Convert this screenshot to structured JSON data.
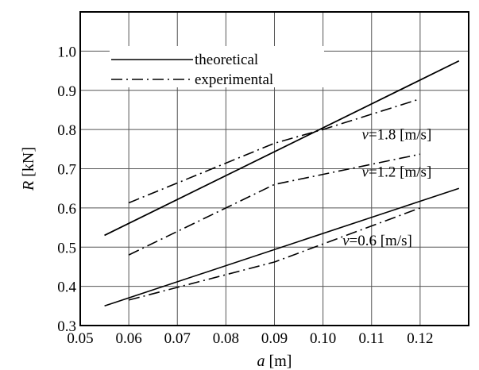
{
  "chart_data": {
    "type": "line",
    "xlabel": {
      "var": "a",
      "unit": " [m]"
    },
    "ylabel": {
      "var": "R",
      "unit": " [kN]"
    },
    "xlim": [
      0.05,
      0.13
    ],
    "ylim": [
      0.3,
      1.1
    ],
    "xticks": [
      0.05,
      0.06,
      0.07,
      0.08,
      0.09,
      0.1,
      0.11,
      0.12
    ],
    "xtick_labels": [
      "0.05",
      "0.06",
      "0.07",
      "0.08",
      "0.09",
      "0.10",
      "0.11",
      "0.12"
    ],
    "yticks": [
      0.3,
      0.4,
      0.5,
      0.6,
      0.7,
      0.8,
      0.9,
      1.0
    ],
    "ytick_labels": [
      "0.3",
      "0.4",
      "0.5",
      "0.6",
      "0.7",
      "0.8",
      "0.9",
      "1.0"
    ],
    "grid": true,
    "legend": {
      "placement": "top-left",
      "entries": [
        {
          "label": "theoretical",
          "style": "solid"
        },
        {
          "label": "experimental",
          "style": "dashdot"
        }
      ]
    },
    "series": [
      {
        "group": "1.8",
        "style": "solid",
        "x": [
          0.055,
          0.128
        ],
        "y": [
          0.53,
          0.975
        ]
      },
      {
        "group": "1.8",
        "style": "dashdot",
        "x": [
          0.06,
          0.09,
          0.1,
          0.12
        ],
        "y": [
          0.613,
          0.765,
          0.8,
          0.878
        ]
      },
      {
        "group": "1.2",
        "style": "solid",
        "x": [
          0.055,
          0.128
        ],
        "y": [
          0.53,
          0.975
        ]
      },
      {
        "group": "1.2",
        "style": "dashdot",
        "x": [
          0.06,
          0.09,
          0.12
        ],
        "y": [
          0.48,
          0.66,
          0.737
        ]
      },
      {
        "group": "0.6",
        "style": "solid",
        "x": [
          0.055,
          0.128
        ],
        "y": [
          0.35,
          0.65
        ]
      },
      {
        "group": "0.6",
        "style": "dashdot",
        "x": [
          0.06,
          0.09,
          0.12
        ],
        "y": [
          0.365,
          0.462,
          0.6
        ]
      }
    ],
    "annotations": [
      {
        "var": "v",
        "text": "=1.8 [m/s]",
        "x": 0.108,
        "y": 0.775
      },
      {
        "var": "v",
        "text": "=1.2 [m/s]",
        "x": 0.108,
        "y": 0.68
      },
      {
        "var": "v",
        "text": "=0.6 [m/s]",
        "x": 0.104,
        "y": 0.505
      }
    ]
  }
}
